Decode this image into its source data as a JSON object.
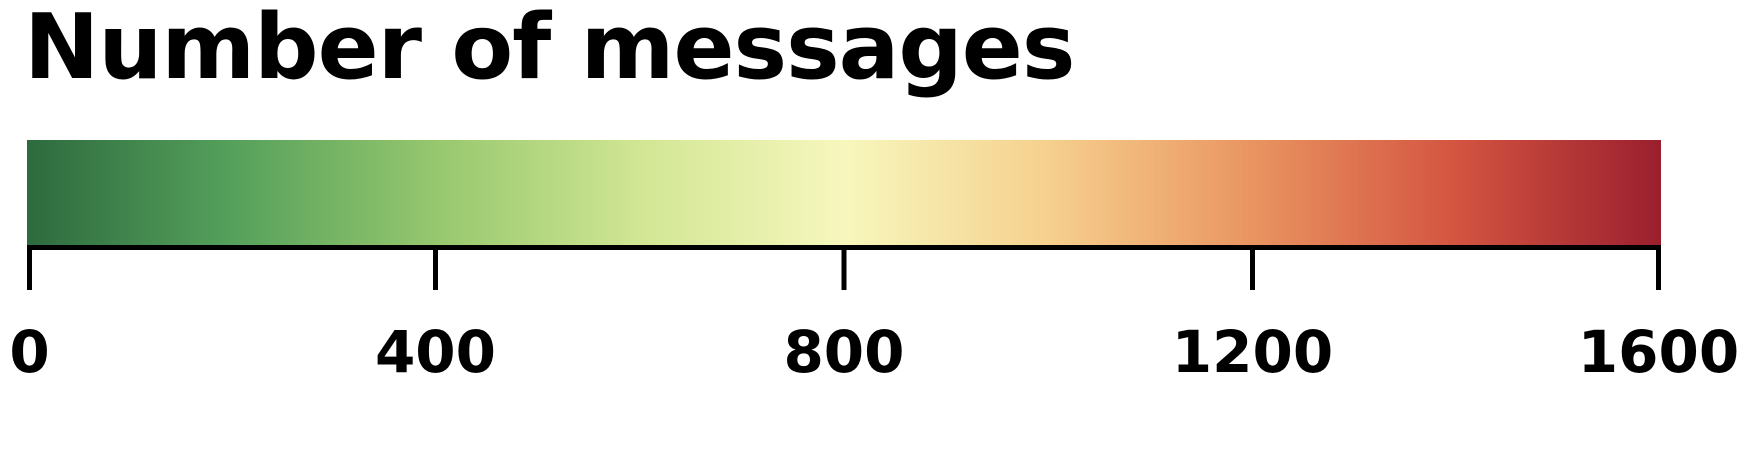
{
  "chart_data": {
    "type": "heatmap",
    "title": "Number of messages",
    "colorbar": {
      "min": 0,
      "max": 1600,
      "orientation": "horizontal",
      "ticks": [
        0,
        400,
        800,
        1200,
        1600
      ],
      "tick_labels": [
        "0",
        "400",
        "800",
        "1200",
        "1600"
      ],
      "color_stops": [
        {
          "value": 0,
          "color": "#2d6a3e"
        },
        {
          "value": 200,
          "color": "#55a05b"
        },
        {
          "value": 400,
          "color": "#96c76e"
        },
        {
          "value": 600,
          "color": "#d1e694"
        },
        {
          "value": 800,
          "color": "#f7f7bd"
        },
        {
          "value": 1000,
          "color": "#f6d08e"
        },
        {
          "value": 1200,
          "color": "#e99461"
        },
        {
          "value": 1400,
          "color": "#d35440"
        },
        {
          "value": 1600,
          "color": "#9a1f2e"
        }
      ]
    }
  }
}
